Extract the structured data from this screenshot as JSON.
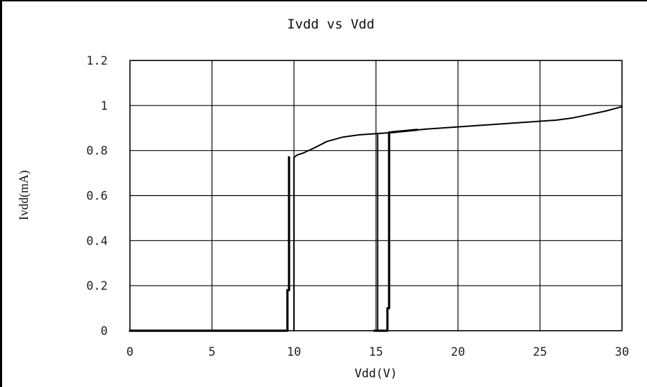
{
  "chart_data": {
    "type": "line",
    "title": "Ivdd vs Vdd",
    "xlabel": "Vdd(V)",
    "ylabel": "Ivdd(mA)",
    "xlim": [
      0,
      30
    ],
    "ylim": [
      0,
      1.2
    ],
    "xticks": [
      0,
      5,
      10,
      15,
      20,
      25,
      30
    ],
    "yticks": [
      0,
      0.2,
      0.4,
      0.6,
      0.8,
      1,
      1.2
    ],
    "xtick_labels": [
      "0",
      "5",
      "10",
      "15",
      "20",
      "25",
      "30"
    ],
    "ytick_labels": [
      "0",
      "0.2",
      "0.4",
      "0.6",
      "0.8",
      "1",
      "1.2"
    ],
    "grid": true,
    "series": [
      {
        "style": "thick",
        "x": [
          0,
          9.6,
          9.6,
          9.7,
          9.7
        ],
        "y": [
          0,
          0,
          0.18,
          0.18,
          0.77
        ]
      },
      {
        "style": "thin",
        "x": [
          10.0,
          10.0,
          10.2,
          10.6,
          11.2,
          12.0,
          13.0,
          14.0,
          15.0,
          16.0,
          18.0,
          20.0,
          22.0,
          24.0,
          26.0,
          27.0,
          28.0,
          29.0,
          30.0
        ],
        "y": [
          0,
          0.77,
          0.78,
          0.79,
          0.81,
          0.84,
          0.86,
          0.87,
          0.875,
          0.88,
          0.895,
          0.905,
          0.915,
          0.925,
          0.935,
          0.945,
          0.96,
          0.975,
          0.995
        ]
      },
      {
        "style": "thin",
        "x": [
          15.1,
          15.1
        ],
        "y": [
          0,
          0.875
        ]
      },
      {
        "style": "thick",
        "x": [
          14.9,
          15.7,
          15.7,
          15.8,
          15.8,
          17.5
        ],
        "y": [
          0,
          0,
          0.1,
          0.1,
          0.88,
          0.892
        ]
      }
    ]
  }
}
